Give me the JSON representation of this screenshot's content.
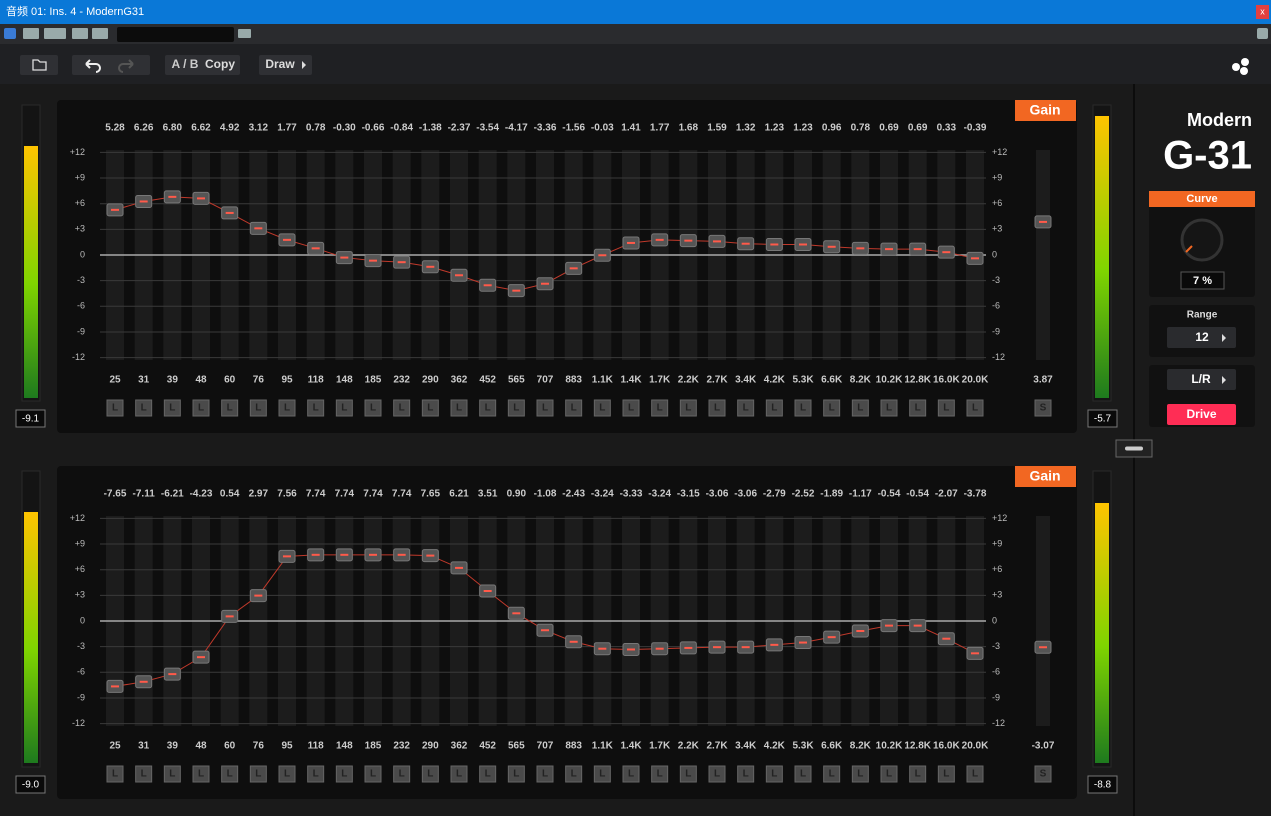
{
  "window": {
    "title": "音频 01: Ins. 4 - ModernG31",
    "close": "x"
  },
  "toolbar": {
    "ab": "A / B",
    "copy": "Copy",
    "draw": "Draw"
  },
  "frequencies": [
    "25",
    "31",
    "39",
    "48",
    "60",
    "76",
    "95",
    "118",
    "148",
    "185",
    "232",
    "290",
    "362",
    "452",
    "565",
    "707",
    "883",
    "1.1K",
    "1.4K",
    "1.7K",
    "2.2K",
    "2.7K",
    "3.4K",
    "4.2K",
    "5.3K",
    "6.6K",
    "8.2K",
    "10.2K",
    "12.8K",
    "16.0K",
    "20.0K"
  ],
  "scale": [
    "+12",
    "+9",
    "+6",
    "+3",
    "0",
    "-3",
    "-6",
    "-9",
    "-12"
  ],
  "panels": [
    {
      "tab": "Gain",
      "gains": [
        "5.28",
        "6.26",
        "6.80",
        "6.62",
        "4.92",
        "3.12",
        "1.77",
        "0.78",
        "-0.30",
        "-0.66",
        "-0.84",
        "-1.38",
        "-2.37",
        "-3.54",
        "-4.17",
        "-3.36",
        "-1.56",
        "-0.03",
        "1.41",
        "1.77",
        "1.68",
        "1.59",
        "1.32",
        "1.23",
        "1.23",
        "0.96",
        "0.78",
        "0.69",
        "0.69",
        "0.33",
        "-0.39"
      ],
      "channels": [
        "L",
        "L",
        "L",
        "L",
        "L",
        "L",
        "L",
        "L",
        "L",
        "L",
        "L",
        "L",
        "L",
        "L",
        "L",
        "L",
        "L",
        "L",
        "L",
        "L",
        "L",
        "L",
        "L",
        "L",
        "L",
        "L",
        "L",
        "L",
        "L",
        "L",
        "L"
      ],
      "output": "3.87",
      "output_channel": "S",
      "meter_in": "-9.1",
      "meter_out": "-5.7"
    },
    {
      "tab": "Gain",
      "gains": [
        "-7.65",
        "-7.11",
        "-6.21",
        "-4.23",
        "0.54",
        "2.97",
        "7.56",
        "7.74",
        "7.74",
        "7.74",
        "7.74",
        "7.65",
        "6.21",
        "3.51",
        "0.90",
        "-1.08",
        "-2.43",
        "-3.24",
        "-3.33",
        "-3.24",
        "-3.15",
        "-3.06",
        "-3.06",
        "-2.79",
        "-2.52",
        "-1.89",
        "-1.17",
        "-0.54",
        "-0.54",
        "-2.07",
        "-3.78"
      ],
      "channels": [
        "L",
        "L",
        "L",
        "L",
        "L",
        "L",
        "L",
        "L",
        "L",
        "L",
        "L",
        "L",
        "L",
        "L",
        "L",
        "L",
        "L",
        "L",
        "L",
        "L",
        "L",
        "L",
        "L",
        "L",
        "L",
        "L",
        "L",
        "L",
        "L",
        "L",
        "L"
      ],
      "output": "-3.07",
      "output_channel": "S",
      "meter_in": "-9.0",
      "meter_out": "-8.8"
    }
  ],
  "side": {
    "brand": "Modern",
    "model": "G-31",
    "curve": "Curve",
    "curve_value": "7 %",
    "range": "Range",
    "range_value": "12",
    "mode": "L/R",
    "drive": "Drive"
  }
}
